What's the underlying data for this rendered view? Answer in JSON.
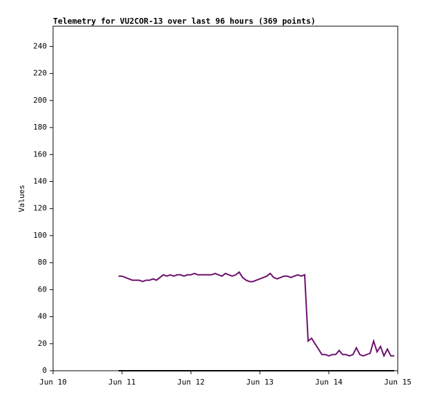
{
  "chart_data": {
    "type": "line",
    "title": "Telemetry for VU2COR-13 over last 96 hours (369 points)",
    "y_label": "Values",
    "xlim": [
      0,
      5
    ],
    "xticks": [
      {
        "value": 0,
        "label": "Jun 10"
      },
      {
        "value": 1,
        "label": "Jun 11"
      },
      {
        "value": 2,
        "label": "Jun 12"
      },
      {
        "value": 3,
        "label": "Jun 13"
      },
      {
        "value": 4,
        "label": "Jun 14"
      },
      {
        "value": 5,
        "label": "Jun 15"
      }
    ],
    "ylim": [
      0,
      255
    ],
    "yticks": [
      0,
      20,
      40,
      60,
      80,
      100,
      120,
      140,
      160,
      180,
      200,
      220,
      240
    ],
    "series": [
      {
        "color": "#6b0f6b",
        "x": [
          0.95,
          1.0,
          1.05,
          1.1,
          1.15,
          1.2,
          1.25,
          1.3,
          1.35,
          1.4,
          1.45,
          1.5,
          1.55,
          1.6,
          1.65,
          1.7,
          1.75,
          1.8,
          1.85,
          1.9,
          1.95,
          2.0,
          2.05,
          2.1,
          2.15,
          2.2,
          2.25,
          2.3,
          2.35,
          2.4,
          2.45,
          2.5,
          2.55,
          2.6,
          2.65,
          2.7,
          2.75,
          2.8,
          2.85,
          2.9,
          2.95,
          3.0,
          3.05,
          3.1,
          3.15,
          3.2,
          3.25,
          3.3,
          3.35,
          3.4,
          3.45,
          3.5,
          3.55,
          3.6,
          3.65,
          3.7,
          3.75,
          3.8,
          3.85,
          3.9,
          3.95,
          4.0,
          4.05,
          4.1,
          4.15,
          4.2,
          4.25,
          4.3,
          4.35,
          4.4,
          4.45,
          4.5,
          4.55,
          4.6,
          4.65,
          4.7,
          4.75,
          4.8,
          4.85,
          4.9,
          4.95
        ],
        "values": [
          70,
          70,
          69,
          68,
          67,
          67,
          67,
          66,
          67,
          67,
          68,
          67,
          69,
          71,
          70,
          71,
          70,
          71,
          71,
          70,
          71,
          71,
          72,
          71,
          71,
          71,
          71,
          71,
          72,
          71,
          70,
          72,
          71,
          70,
          71,
          73,
          69,
          67,
          66,
          66,
          67,
          68,
          69,
          70,
          72,
          69,
          68,
          69,
          70,
          70,
          69,
          70,
          71,
          70,
          71,
          22,
          24,
          20,
          16,
          12,
          12,
          11,
          12,
          12,
          15,
          12,
          12,
          11,
          12,
          17,
          12,
          11,
          12,
          13,
          22,
          14,
          18,
          11,
          16,
          11,
          11
        ]
      },
      {
        "color": "#000000",
        "x": [
          0.95,
          4.95
        ],
        "values": [
          0,
          0
        ]
      }
    ]
  }
}
